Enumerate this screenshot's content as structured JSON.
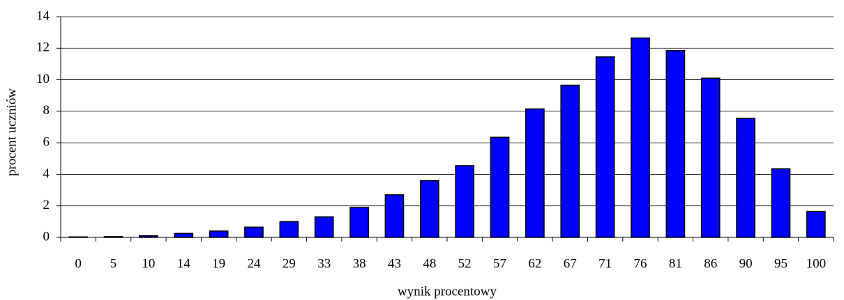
{
  "chart_data": {
    "type": "bar",
    "x_label": "wynik procentowy",
    "y_label": "procent uczniów",
    "categories": [
      "0",
      "5",
      "10",
      "14",
      "19",
      "24",
      "29",
      "33",
      "38",
      "43",
      "48",
      "52",
      "57",
      "62",
      "67",
      "71",
      "76",
      "81",
      "86",
      "90",
      "95",
      "100"
    ],
    "values": [
      0.03,
      0.05,
      0.1,
      0.25,
      0.4,
      0.65,
      1.0,
      1.3,
      1.9,
      2.7,
      3.6,
      4.55,
      6.35,
      8.15,
      9.65,
      11.45,
      12.65,
      11.85,
      10.1,
      7.55,
      4.35,
      1.65
    ],
    "color": "#0000ff",
    "ylim": [
      0,
      14
    ],
    "yticks": [
      0,
      2,
      4,
      6,
      8,
      10,
      12,
      14
    ],
    "grid": true
  }
}
